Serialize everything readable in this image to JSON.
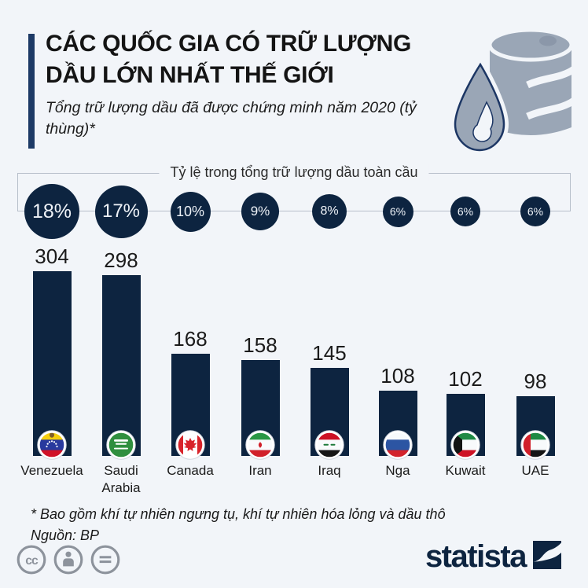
{
  "header": {
    "title": "CÁC QUỐC GIA CÓ TRỮ LƯỢNG DẦU LỚN NHẤT THẾ GIỚI",
    "subtitle": "Tổng trữ lượng dầu đã được chứng minh năm 2020 (tỷ thùng)*"
  },
  "band_label": "Tỷ lệ trong tổng trữ lượng dầu toàn cầu",
  "chart_data": {
    "type": "bar",
    "title": "CÁC QUỐC GIA CÓ TRỮ LƯỢNG DẦU LỚN NHẤT THẾ GIỚI",
    "subtitle": "Tổng trữ lượng dầu đã được chứng minh năm 2020 (tỷ thùng)*",
    "categories": [
      "Venezuela",
      "Saudi Arabia",
      "Canada",
      "Iran",
      "Iraq",
      "Nga",
      "Kuwait",
      "UAE"
    ],
    "values": [
      304,
      298,
      168,
      158,
      145,
      108,
      102,
      98
    ],
    "share_of_global": [
      "18%",
      "17%",
      "10%",
      "9%",
      "8%",
      "6%",
      "6%",
      "6%"
    ],
    "share_band_label": "Tỷ lệ trong tổng trữ lượng dầu toàn cầu",
    "unit": "tỷ thùng",
    "ylim": [
      0,
      304
    ],
    "grid": false,
    "legend": false,
    "source": "BP"
  },
  "countries": [
    {
      "name": "Venezuela",
      "label": "Venezuela",
      "value": "304",
      "share": "18%",
      "flag": "venezuela"
    },
    {
      "name": "Saudi Arabia",
      "label": "Saudi\nArabia",
      "value": "298",
      "share": "17%",
      "flag": "saudi"
    },
    {
      "name": "Canada",
      "label": "Canada",
      "value": "168",
      "share": "10%",
      "flag": "canada"
    },
    {
      "name": "Iran",
      "label": "Iran",
      "value": "158",
      "share": "9%",
      "flag": "iran"
    },
    {
      "name": "Iraq",
      "label": "Iraq",
      "value": "145",
      "share": "8%",
      "flag": "iraq"
    },
    {
      "name": "Nga",
      "label": "Nga",
      "value": "108",
      "share": "6%",
      "flag": "russia"
    },
    {
      "name": "Kuwait",
      "label": "Kuwait",
      "value": "102",
      "share": "6%",
      "flag": "kuwait"
    },
    {
      "name": "UAE",
      "label": "UAE",
      "value": "98",
      "share": "6%",
      "flag": "uae"
    }
  ],
  "footer": {
    "footnote": "* Bao gồm khí tự nhiên ngưng tụ, khí tự nhiên hóa lỏng và dầu thô",
    "source": "Nguồn: BP",
    "brand": "statista",
    "license_icons": [
      "cc",
      "by",
      "nd"
    ]
  },
  "icons": {
    "header_icon": "oil-barrel-with-drop-icon",
    "brand_icon": "statista-logo-icon"
  },
  "colors": {
    "navy": "#0d2440",
    "background": "#f2f5f9",
    "band_border": "#b7bfca",
    "barrel_gray": "#9aa6b6",
    "license_gray": "#8d939c",
    "title_text": "#141414"
  }
}
